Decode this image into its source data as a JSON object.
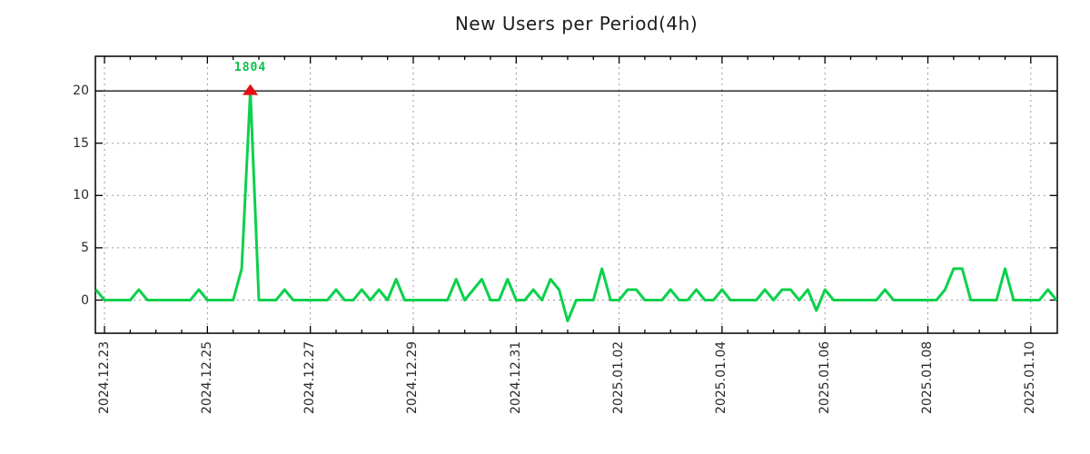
{
  "chart": {
    "title": "New Users per Period(4h)",
    "peak_annotation": "1804"
  },
  "chart_data": {
    "type": "line",
    "title": "New Users per Period(4h)",
    "series_name": "new users per 4h period",
    "period_per_point": "4h",
    "points_per_x_tick_interval": 12,
    "x_tick_labels": [
      "2024.12.23",
      "2024.12.25",
      "2024.12.27",
      "2024.12.29",
      "2024.12.31",
      "2025.01.02",
      "2025.01.04",
      "2025.01.06",
      "2025.01.08",
      "2025.01.10"
    ],
    "y_ticks": [
      20,
      15,
      10,
      5,
      0
    ],
    "ylim_rendered": [
      -3.2,
      23.3
    ],
    "clip_display_max": 20,
    "values": [
      1,
      0,
      0,
      0,
      0,
      1,
      0,
      0,
      0,
      0,
      0,
      0,
      1,
      0,
      0,
      0,
      0,
      3,
      1804,
      0,
      0,
      0,
      1,
      0,
      0,
      0,
      0,
      0,
      1,
      0,
      0,
      1,
      0,
      1,
      0,
      2,
      0,
      0,
      0,
      0,
      0,
      0,
      2,
      0,
      1,
      2,
      0,
      0,
      2,
      0,
      0,
      1,
      0,
      2,
      1,
      -2,
      0,
      0,
      0,
      3,
      0,
      0,
      1,
      1,
      0,
      0,
      0,
      1,
      0,
      0,
      1,
      0,
      0,
      1,
      0,
      0,
      0,
      0,
      1,
      0,
      1,
      1,
      0,
      1,
      -1,
      1,
      0,
      0,
      0,
      0,
      0,
      0,
      1,
      0,
      0,
      0,
      0,
      0,
      0,
      1,
      3,
      3,
      0,
      0,
      0,
      0,
      3,
      0,
      0,
      0,
      0,
      1,
      0
    ],
    "max_point": {
      "index": 18,
      "value": 1804,
      "label": "1804",
      "marker": "filled red triangle clipped at y=20"
    },
    "grid": {
      "style": "dashed gray, major x every 2 days with 3 minor ticks, solid black rule at y=20"
    },
    "legend": "none",
    "colors": {
      "line": "#0cd14c",
      "peak_marker": "#e60c12",
      "peak_label": "#0cc14a",
      "grid": "#9a9a9a",
      "axis": "#000000",
      "tick_text": "#2b2b2b",
      "background": "#ffffff"
    }
  }
}
